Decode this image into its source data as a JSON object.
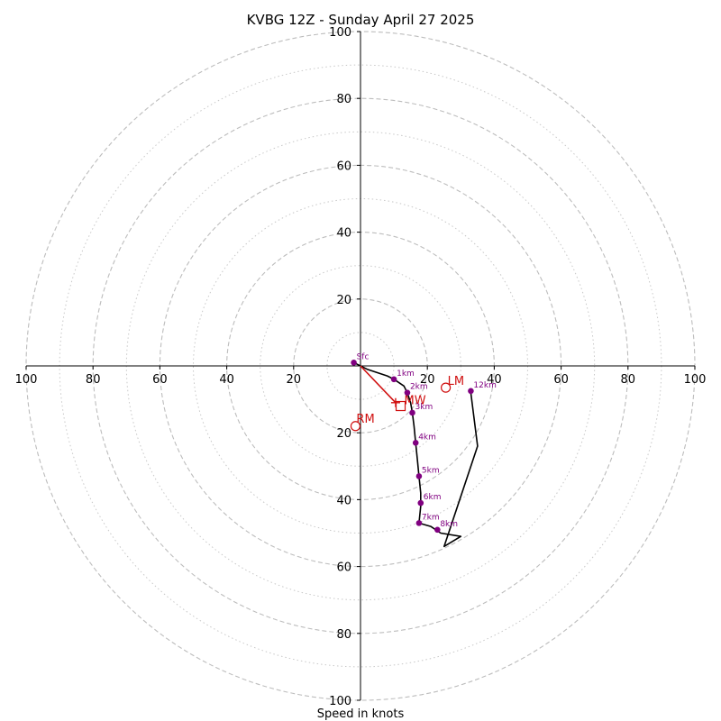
{
  "chart_data": {
    "type": "line",
    "title": "KVBG 12Z - Sunday April 27 2025",
    "xlabel": "Speed in knots",
    "ylabel": "",
    "rings": {
      "dashed": [
        20,
        40,
        60,
        80,
        100
      ],
      "dotted": [
        10,
        30,
        50,
        70,
        90
      ]
    },
    "axis_ticks": {
      "right": [
        "20",
        "40",
        "60",
        "80",
        "100"
      ],
      "left": [
        "20",
        "40",
        "60",
        "80",
        "100"
      ],
      "up": [
        "20",
        "40",
        "60",
        "80",
        "100"
      ],
      "down": [
        "20",
        "40",
        "60",
        "80",
        "100"
      ]
    },
    "ticks": [
      20,
      40,
      60,
      80,
      100
    ],
    "range": 100,
    "hodograph": {
      "color": "#000000",
      "points": [
        {
          "u": -2,
          "v": 1
        },
        {
          "u": 2,
          "v": -1
        },
        {
          "u": 8,
          "v": -3
        },
        {
          "u": 10,
          "v": -4
        },
        {
          "u": 13,
          "v": -6
        },
        {
          "u": 14,
          "v": -8
        },
        {
          "u": 15,
          "v": -11
        },
        {
          "u": 15.5,
          "v": -14
        },
        {
          "u": 16,
          "v": -18
        },
        {
          "u": 16.5,
          "v": -23
        },
        {
          "u": 17,
          "v": -28
        },
        {
          "u": 17.5,
          "v": -33
        },
        {
          "u": 18,
          "v": -38
        },
        {
          "u": 18,
          "v": -42
        },
        {
          "u": 17.5,
          "v": -47
        },
        {
          "u": 21,
          "v": -48
        },
        {
          "u": 24,
          "v": -50
        },
        {
          "u": 30,
          "v": -51
        },
        {
          "u": 25,
          "v": -54
        },
        {
          "u": 35,
          "v": -24
        },
        {
          "u": 33,
          "v": -8
        }
      ]
    },
    "height_markers": [
      {
        "label": "Sfc",
        "u": -2,
        "v": 1
      },
      {
        "label": "1km",
        "u": 10,
        "v": -4
      },
      {
        "label": "2km",
        "u": 14,
        "v": -8
      },
      {
        "label": "3km",
        "u": 15.5,
        "v": -14
      },
      {
        "label": "4km",
        "u": 16.5,
        "v": -23
      },
      {
        "label": "5km",
        "u": 17.5,
        "v": -33
      },
      {
        "label": "6km",
        "u": 18,
        "v": -41
      },
      {
        "label": "7km",
        "u": 17.5,
        "v": -47
      },
      {
        "label": "8km",
        "u": 23,
        "v": -49
      },
      {
        "label": "12km",
        "u": 33,
        "v": -7.5
      }
    ],
    "marker_color": "#800080",
    "storm_motion": {
      "color": "#d01010",
      "shear_vector": {
        "from": {
          "u": 0,
          "v": 0
        },
        "to": {
          "u": 10.5,
          "v": -11
        }
      },
      "mean_wind": {
        "label": "MW",
        "u": 12,
        "v": -12
      },
      "left_mover": {
        "label": "LM",
        "u": 25.5,
        "v": -6.5
      },
      "right_mover": {
        "label": "RM",
        "u": -1.5,
        "v": -18
      }
    }
  }
}
